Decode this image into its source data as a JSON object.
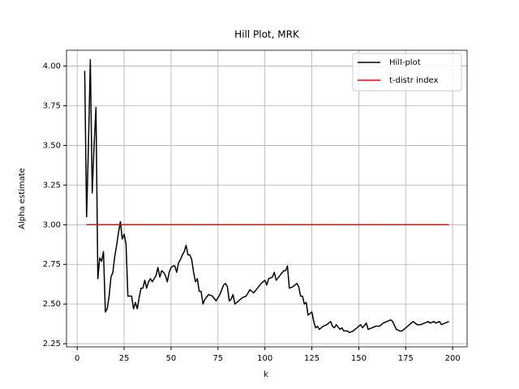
{
  "chart_data": {
    "type": "line",
    "title": "Hill Plot, MRK",
    "x_label": "k",
    "y_label": "Alpha estimate",
    "xlim": [
      -5.7,
      207.7
    ],
    "ylim": [
      2.23,
      4.1
    ],
    "xticks": [
      0,
      25,
      50,
      75,
      100,
      125,
      150,
      175,
      200
    ],
    "yticks": [
      2.25,
      {
        "value": 2.5,
        "label": "2.50"
      },
      2.75,
      {
        "value": 3,
        "label": "3.00"
      },
      3.25,
      {
        "value": 3.5,
        "label": "3.50"
      },
      3.75,
      {
        "value": 4,
        "label": "4.00"
      }
    ],
    "grid": true,
    "legend": "upper right",
    "series": [
      {
        "name": "Hill-plot",
        "color": "#000000",
        "x": [
          4,
          5,
          6,
          7,
          8,
          9,
          10,
          11,
          12,
          13,
          14,
          15,
          16,
          17,
          18,
          19,
          20,
          21,
          22,
          23,
          24,
          25,
          26,
          27,
          28,
          29,
          30,
          31,
          32,
          33,
          34,
          35,
          36,
          37,
          38,
          39,
          40,
          41,
          42,
          43,
          44,
          45,
          46,
          47,
          48,
          49,
          50,
          51,
          52,
          53,
          54,
          55,
          56,
          57,
          58,
          59,
          60,
          61,
          62,
          63,
          64,
          65,
          66,
          67,
          68,
          70,
          72,
          74,
          76,
          78,
          79,
          80,
          81,
          82,
          83,
          84,
          86,
          88,
          90,
          92,
          94,
          96,
          98,
          100,
          101,
          102,
          104,
          105,
          106,
          108,
          110,
          111,
          112,
          113,
          115,
          117,
          118,
          119,
          120,
          121,
          122,
          123,
          125,
          126,
          127,
          128,
          129,
          131,
          133,
          135,
          136,
          137,
          138,
          140,
          141,
          142,
          144,
          145,
          147,
          149,
          151,
          152,
          154,
          155,
          157,
          159,
          161,
          163,
          165,
          167,
          168,
          170,
          172,
          173,
          175,
          177,
          179,
          181,
          183,
          185,
          187,
          188,
          190,
          191,
          193,
          194,
          196,
          198
        ],
        "values": [
          3.97,
          3.05,
          3.5,
          4.04,
          3.2,
          3.5,
          3.74,
          2.66,
          2.79,
          2.77,
          2.83,
          2.45,
          2.47,
          2.55,
          2.67,
          2.7,
          2.8,
          2.87,
          2.95,
          3.02,
          2.91,
          2.94,
          2.88,
          2.55,
          2.55,
          2.55,
          2.47,
          2.51,
          2.47,
          2.54,
          2.6,
          2.6,
          2.65,
          2.6,
          2.64,
          2.66,
          2.64,
          2.66,
          2.68,
          2.73,
          2.67,
          2.71,
          2.7,
          2.68,
          2.64,
          2.7,
          2.73,
          2.74,
          2.74,
          2.7,
          2.76,
          2.78,
          2.81,
          2.83,
          2.87,
          2.81,
          2.81,
          2.78,
          2.7,
          2.64,
          2.66,
          2.58,
          2.58,
          2.5,
          2.53,
          2.56,
          2.55,
          2.52,
          2.56,
          2.62,
          2.63,
          2.61,
          2.52,
          2.53,
          2.56,
          2.5,
          2.52,
          2.54,
          2.55,
          2.59,
          2.57,
          2.6,
          2.63,
          2.65,
          2.62,
          2.66,
          2.67,
          2.7,
          2.65,
          2.68,
          2.71,
          2.71,
          2.74,
          2.6,
          2.61,
          2.63,
          2.61,
          2.55,
          2.55,
          2.5,
          2.51,
          2.43,
          2.45,
          2.39,
          2.35,
          2.36,
          2.34,
          2.36,
          2.37,
          2.39,
          2.36,
          2.35,
          2.37,
          2.34,
          2.35,
          2.33,
          2.33,
          2.32,
          2.33,
          2.35,
          2.37,
          2.35,
          2.38,
          2.34,
          2.35,
          2.36,
          2.36,
          2.38,
          2.39,
          2.4,
          2.39,
          2.34,
          2.33,
          2.33,
          2.35,
          2.37,
          2.39,
          2.37,
          2.37,
          2.38,
          2.39,
          2.38,
          2.39,
          2.38,
          2.39,
          2.37,
          2.38,
          2.39
        ]
      },
      {
        "name": "t-distr index",
        "color": "#ff0000",
        "x": [
          5,
          198
        ],
        "values": [
          3,
          3
        ]
      }
    ]
  }
}
